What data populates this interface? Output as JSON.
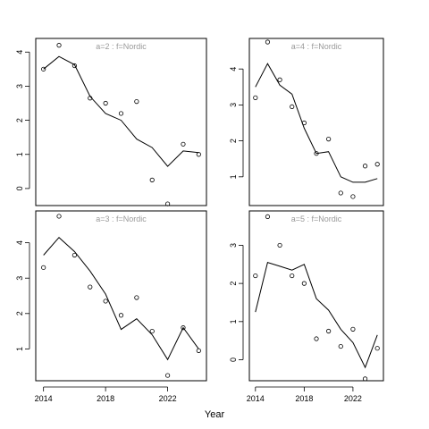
{
  "chart_data": {
    "type": "scatter",
    "xlabel": "Year",
    "x": [
      2014,
      2015,
      2016,
      2017,
      2018,
      2019,
      2020,
      2021,
      2022,
      2023,
      2024
    ],
    "panels": [
      {
        "title": "a=2 : f=Nordic",
        "ylim": [
          -0.5,
          4.4
        ],
        "yticks": [
          "0",
          "1",
          "2",
          "3",
          "4"
        ],
        "xticks": [],
        "fitted": [
          3.5,
          3.87,
          3.63,
          2.7,
          2.2,
          2.0,
          1.45,
          1.2,
          0.65,
          1.1,
          1.05
        ],
        "observed": [
          3.5,
          4.2,
          3.6,
          2.65,
          2.5,
          2.2,
          2.55,
          0.25,
          -0.45,
          1.3,
          1.0
        ]
      },
      {
        "title": "a=4 : f=Nordic",
        "ylim": [
          0.2,
          4.85
        ],
        "yticks": [
          "1",
          "2",
          "3",
          "4"
        ],
        "xticks": [],
        "fitted": [
          3.5,
          4.15,
          3.55,
          3.3,
          2.35,
          1.65,
          1.7,
          1.0,
          0.85,
          0.85,
          0.95
        ],
        "observed": [
          3.2,
          4.75,
          3.7,
          2.95,
          2.5,
          1.65,
          2.05,
          0.55,
          0.45,
          1.3,
          1.35
        ]
      },
      {
        "title": "a=3 : f=Nordic",
        "ylim": [
          0.1,
          4.9
        ],
        "yticks": [
          "1",
          "2",
          "3",
          "4"
        ],
        "xticks": [
          "2014",
          "2018",
          "2022"
        ],
        "fitted": [
          3.65,
          4.15,
          3.75,
          3.2,
          2.55,
          1.55,
          1.85,
          1.4,
          0.7,
          1.6,
          1.0
        ],
        "observed": [
          3.3,
          4.75,
          3.65,
          2.75,
          2.35,
          1.95,
          2.45,
          1.5,
          0.25,
          1.6,
          0.95
        ]
      },
      {
        "title": "a=5 : f=Nordic",
        "ylim": [
          -0.55,
          3.9
        ],
        "yticks": [
          "0",
          "1",
          "2",
          "3"
        ],
        "xticks": [
          "2014",
          "2018",
          "2022"
        ],
        "fitted": [
          1.25,
          2.55,
          2.45,
          2.35,
          2.5,
          1.6,
          1.3,
          0.8,
          0.45,
          -0.2,
          0.65
        ],
        "observed": [
          2.2,
          3.75,
          3.0,
          2.2,
          2.0,
          0.55,
          0.75,
          0.35,
          0.8,
          -0.5,
          0.3
        ]
      }
    ]
  }
}
